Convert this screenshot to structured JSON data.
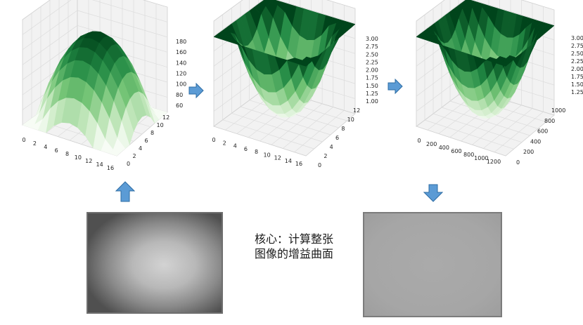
{
  "colors": {
    "surface_dark": "#00441b",
    "surface_light": "#f7fcf5",
    "arrow": "#5b9bd5",
    "arrow_edge": "#2e6da4"
  },
  "plots": [
    {
      "name": "plot-1",
      "x_ticks": [
        "0",
        "2",
        "4",
        "6",
        "8",
        "10",
        "12",
        "14",
        "16"
      ],
      "y_ticks": [
        "0",
        "2",
        "4",
        "6",
        "8",
        "10",
        "12"
      ],
      "z_ticks": [
        "60",
        "80",
        "100",
        "120",
        "140",
        "160",
        "180"
      ]
    },
    {
      "name": "plot-2",
      "x_ticks": [
        "0",
        "2",
        "4",
        "6",
        "8",
        "10",
        "12",
        "14",
        "16"
      ],
      "y_ticks": [
        "0",
        "2",
        "4",
        "6",
        "8",
        "10",
        "12"
      ],
      "z_ticks": [
        "1.00",
        "1.25",
        "1.50",
        "1.75",
        "2.00",
        "2.25",
        "2.50",
        "2.75",
        "3.00"
      ]
    },
    {
      "name": "plot-3",
      "x_ticks": [
        "0",
        "200",
        "400",
        "600",
        "800",
        "1000",
        "1200"
      ],
      "y_ticks": [
        "0",
        "200",
        "400",
        "600",
        "800",
        "1000"
      ],
      "z_ticks": [
        "1.25",
        "1.50",
        "1.75",
        "2.00",
        "2.25",
        "2.50",
        "2.75",
        "3.00"
      ]
    }
  ],
  "caption": {
    "line1": "核心：计算整张",
    "line2": "图像的增益曲面"
  },
  "icons": {
    "arrow_right": "arrow-right-icon",
    "arrow_up": "arrow-up-icon",
    "arrow_down": "arrow-down-icon"
  }
}
